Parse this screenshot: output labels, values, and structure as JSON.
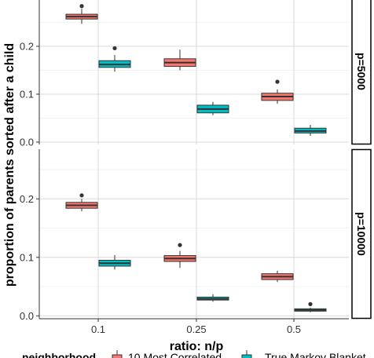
{
  "chart_data": {
    "type": "boxplot",
    "xlabel": "ratio: n/p",
    "ylabel": "proportion of parents sorted after a child",
    "categories": [
      "0.1",
      "0.25",
      "0.5"
    ],
    "legend": {
      "title": "neighborhood",
      "entries": [
        "10 Most Correlated",
        "True Markov Blanket"
      ],
      "position": "bottom"
    },
    "colors": {
      "10 Most Correlated": "#f8766d",
      "True Markov Blanket": "#00bfc4"
    },
    "grid": true,
    "panels": [
      {
        "strip": "p=5000",
        "ylim": [
          -0.005,
          0.3
        ],
        "yticks": [
          "0.0",
          "0.1",
          "0.2"
        ],
        "boxes": [
          {
            "category": "0.1",
            "group": "10 Most Correlated",
            "min": 0.247,
            "q1": 0.257,
            "median": 0.262,
            "q3": 0.267,
            "max": 0.278,
            "outliers": [
              0.284
            ]
          },
          {
            "category": "0.1",
            "group": "True Markov Blanket",
            "min": 0.147,
            "q1": 0.156,
            "median": 0.162,
            "q3": 0.17,
            "max": 0.182,
            "outliers": [
              0.196
            ]
          },
          {
            "category": "0.25",
            "group": "10 Most Correlated",
            "min": 0.15,
            "q1": 0.158,
            "median": 0.166,
            "q3": 0.174,
            "max": 0.193,
            "outliers": []
          },
          {
            "category": "0.25",
            "group": "True Markov Blanket",
            "min": 0.056,
            "q1": 0.061,
            "median": 0.069,
            "q3": 0.077,
            "max": 0.084,
            "outliers": []
          },
          {
            "category": "0.5",
            "group": "10 Most Correlated",
            "min": 0.08,
            "q1": 0.087,
            "median": 0.095,
            "q3": 0.102,
            "max": 0.11,
            "outliers": [
              0.126
            ]
          },
          {
            "category": "0.5",
            "group": "True Markov Blanket",
            "min": 0.013,
            "q1": 0.019,
            "median": 0.023,
            "q3": 0.029,
            "max": 0.036,
            "outliers": []
          }
        ]
      },
      {
        "strip": "p=10000",
        "ylim": [
          -0.005,
          0.285
        ],
        "yticks": [
          "0.0",
          "0.1",
          "0.2"
        ],
        "boxes": [
          {
            "category": "0.1",
            "group": "10 Most Correlated",
            "min": 0.179,
            "q1": 0.184,
            "median": 0.189,
            "q3": 0.194,
            "max": 0.2,
            "outliers": [
              0.206
            ]
          },
          {
            "category": "0.1",
            "group": "True Markov Blanket",
            "min": 0.079,
            "q1": 0.085,
            "median": 0.09,
            "q3": 0.095,
            "max": 0.104,
            "outliers": []
          },
          {
            "category": "0.25",
            "group": "10 Most Correlated",
            "min": 0.082,
            "q1": 0.093,
            "median": 0.098,
            "q3": 0.103,
            "max": 0.111,
            "outliers": [
              0.121
            ]
          },
          {
            "category": "0.25",
            "group": "True Markov Blanket",
            "min": 0.024,
            "q1": 0.027,
            "median": 0.029,
            "q3": 0.032,
            "max": 0.037,
            "outliers": []
          },
          {
            "category": "0.5",
            "group": "10 Most Correlated",
            "min": 0.058,
            "q1": 0.062,
            "median": 0.067,
            "q3": 0.072,
            "max": 0.077,
            "outliers": []
          },
          {
            "category": "0.5",
            "group": "True Markov Blanket",
            "min": 0.006,
            "q1": 0.008,
            "median": 0.01,
            "q3": 0.012,
            "max": 0.014,
            "outliers": [
              0.02
            ]
          }
        ]
      }
    ]
  }
}
